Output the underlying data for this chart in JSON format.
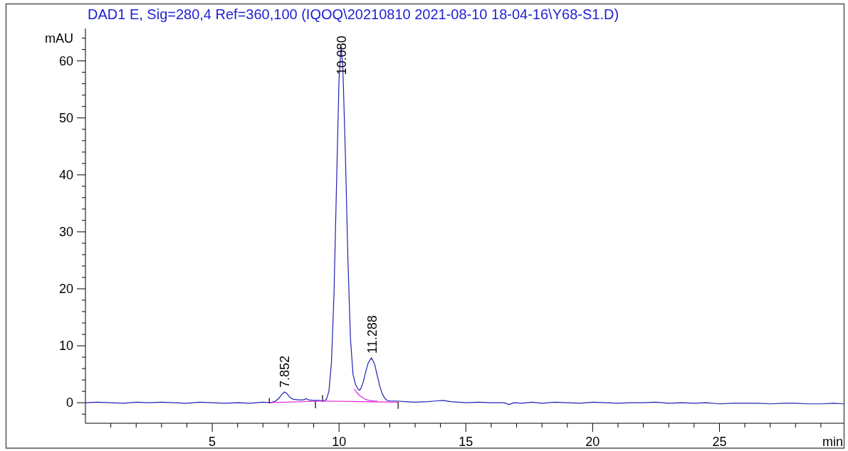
{
  "chart_data": {
    "type": "line",
    "title": "DAD1 E, Sig=280,4 Ref=360,100 (IQOQ\\20210810 2021-08-10 18-04-16\\Y68-S1.D)",
    "xlabel": "min",
    "ylabel": "mAU",
    "xlim": [
      0,
      29.9
    ],
    "ylim": [
      -3.6,
      65.7
    ],
    "xticks": [
      {
        "value": 1,
        "label": null
      },
      {
        "value": 2,
        "label": null
      },
      {
        "value": 3,
        "label": null
      },
      {
        "value": 4,
        "label": null
      },
      5,
      {
        "value": 6,
        "label": null
      },
      {
        "value": 7,
        "label": null
      },
      {
        "value": 8,
        "label": null
      },
      {
        "value": 9,
        "label": null
      },
      10,
      {
        "value": 11,
        "label": null
      },
      {
        "value": 12,
        "label": null
      },
      {
        "value": 13,
        "label": null
      },
      {
        "value": 14,
        "label": null
      },
      15,
      {
        "value": 16,
        "label": null
      },
      {
        "value": 17,
        "label": null
      },
      {
        "value": 18,
        "label": null
      },
      {
        "value": 19,
        "label": null
      },
      20,
      {
        "value": 21,
        "label": null
      },
      {
        "value": 22,
        "label": null
      },
      {
        "value": 23,
        "label": null
      },
      {
        "value": 24,
        "label": null
      },
      25,
      {
        "value": 26,
        "label": null
      },
      {
        "value": 27,
        "label": null
      },
      {
        "value": 28,
        "label": null
      },
      {
        "value": 29,
        "label": null
      }
    ],
    "yticks": [
      {
        "value": -2,
        "label": null
      },
      0,
      {
        "value": 2,
        "label": null
      },
      {
        "value": 4,
        "label": null
      },
      {
        "value": 6,
        "label": null
      },
      {
        "value": 8,
        "label": null
      },
      10,
      {
        "value": 12,
        "label": null
      },
      {
        "value": 14,
        "label": null
      },
      {
        "value": 16,
        "label": null
      },
      {
        "value": 18,
        "label": null
      },
      20,
      {
        "value": 22,
        "label": null
      },
      {
        "value": 24,
        "label": null
      },
      {
        "value": 26,
        "label": null
      },
      {
        "value": 28,
        "label": null
      },
      30,
      {
        "value": 32,
        "label": null
      },
      {
        "value": 34,
        "label": null
      },
      {
        "value": 36,
        "label": null
      },
      {
        "value": 38,
        "label": null
      },
      40,
      {
        "value": 42,
        "label": null
      },
      {
        "value": 44,
        "label": null
      },
      {
        "value": 46,
        "label": null
      },
      {
        "value": 48,
        "label": null
      },
      50,
      {
        "value": 52,
        "label": null
      },
      {
        "value": 54,
        "label": null
      },
      {
        "value": 56,
        "label": null
      },
      {
        "value": 58,
        "label": null
      },
      60,
      {
        "value": 62,
        "label": null
      },
      {
        "value": 64,
        "label": null
      }
    ],
    "series": [
      {
        "color": "#2121b5",
        "x": [
          0,
          0.5,
          1,
          1.5,
          2,
          2.5,
          3,
          3.5,
          4,
          4.5,
          5,
          5.5,
          6,
          6.5,
          7,
          7.3,
          7.5,
          7.65,
          7.75,
          7.85,
          7.95,
          8.05,
          8.2,
          8.4,
          8.6,
          8.7,
          8.8,
          9.0,
          9.2,
          9.4,
          9.5,
          9.6,
          9.7,
          9.8,
          9.9,
          10.0,
          10.08,
          10.15,
          10.25,
          10.35,
          10.45,
          10.55,
          10.65,
          10.75,
          10.8,
          10.85,
          10.95,
          11.05,
          11.15,
          11.28,
          11.4,
          11.5,
          11.6,
          11.7,
          11.8,
          11.9,
          12.0,
          12.3,
          12.6,
          13.0,
          13.5,
          13.8,
          14.1,
          14.4,
          14.7,
          15.0,
          15.5,
          16.0,
          16.5,
          16.7,
          16.9,
          17.2,
          17.6,
          18.0,
          18.5,
          19.0,
          19.5,
          20.0,
          20.5,
          21.0,
          21.5,
          22.0,
          22.5,
          23.0,
          23.5,
          24.0,
          24.5,
          25.0,
          25.5,
          26.0,
          26.5,
          27.0,
          27.5,
          28.0,
          28.5,
          29.0,
          29.5,
          29.9
        ],
        "values": [
          0,
          0.1,
          0,
          -0.1,
          0.1,
          0,
          0.1,
          0,
          -0.1,
          0.1,
          0,
          -0.1,
          0,
          -0.1,
          0.1,
          0,
          0.3,
          0.9,
          1.5,
          1.9,
          1.6,
          1.0,
          0.6,
          0.5,
          0.5,
          0.7,
          0.5,
          0.4,
          0.4,
          0.3,
          0.6,
          2.0,
          7.0,
          18.9,
          38.2,
          56.9,
          62.5,
          58.8,
          43.6,
          25.1,
          11.3,
          5.0,
          3.2,
          2.4,
          2.2,
          2.4,
          3.6,
          5.4,
          7.0,
          7.9,
          6.8,
          4.9,
          3.0,
          1.6,
          0.8,
          0.4,
          0.3,
          0.3,
          0.2,
          0.1,
          0.2,
          0.3,
          0.4,
          0.2,
          0.1,
          0,
          0.1,
          0,
          0,
          -0.3,
          0,
          -0.1,
          0.1,
          -0.1,
          0.1,
          0,
          -0.1,
          0.1,
          0,
          -0.1,
          0,
          0,
          0.1,
          -0.1,
          0,
          -0.1,
          0,
          -0.2,
          -0.1,
          -0.1,
          -0.1,
          -0.2,
          -0.1,
          -0.1,
          -0.2,
          -0.2,
          -0.1,
          -0.2
        ]
      },
      {
        "color": "#e020e0",
        "x": [
          7.25,
          9.4,
          12.3
        ],
        "values": [
          0,
          0.3,
          0.1
        ]
      },
      {
        "color": "#e020e0",
        "x": [
          10.6,
          10.7,
          10.8,
          10.9,
          11.0,
          11.1,
          11.2,
          11.35,
          11.5
        ],
        "values": [
          2.4,
          1.8,
          1.3,
          1.0,
          0.7,
          0.5,
          0.4,
          0.3,
          0.3
        ]
      },
      {
        "color": "#000000",
        "x": [
          7.25,
          7.25
        ],
        "values": [
          0,
          0.8
        ]
      },
      {
        "color": "#000000",
        "x": [
          9.07,
          9.07
        ],
        "values": [
          0.2,
          -0.9
        ]
      },
      {
        "color": "#000000",
        "x": [
          9.35,
          9.35
        ],
        "values": [
          0.3,
          1.3
        ]
      },
      {
        "color": "#000000",
        "x": [
          12.33,
          12.33
        ],
        "values": [
          0.1,
          -1.0
        ]
      }
    ],
    "annotations": [
      {
        "text": "7.852",
        "x": 7.852,
        "y": 1.9
      },
      {
        "text": "10.080",
        "x": 10.08,
        "y": 62.5
      },
      {
        "text": "11.288",
        "x": 11.288,
        "y": 7.9
      }
    ]
  }
}
